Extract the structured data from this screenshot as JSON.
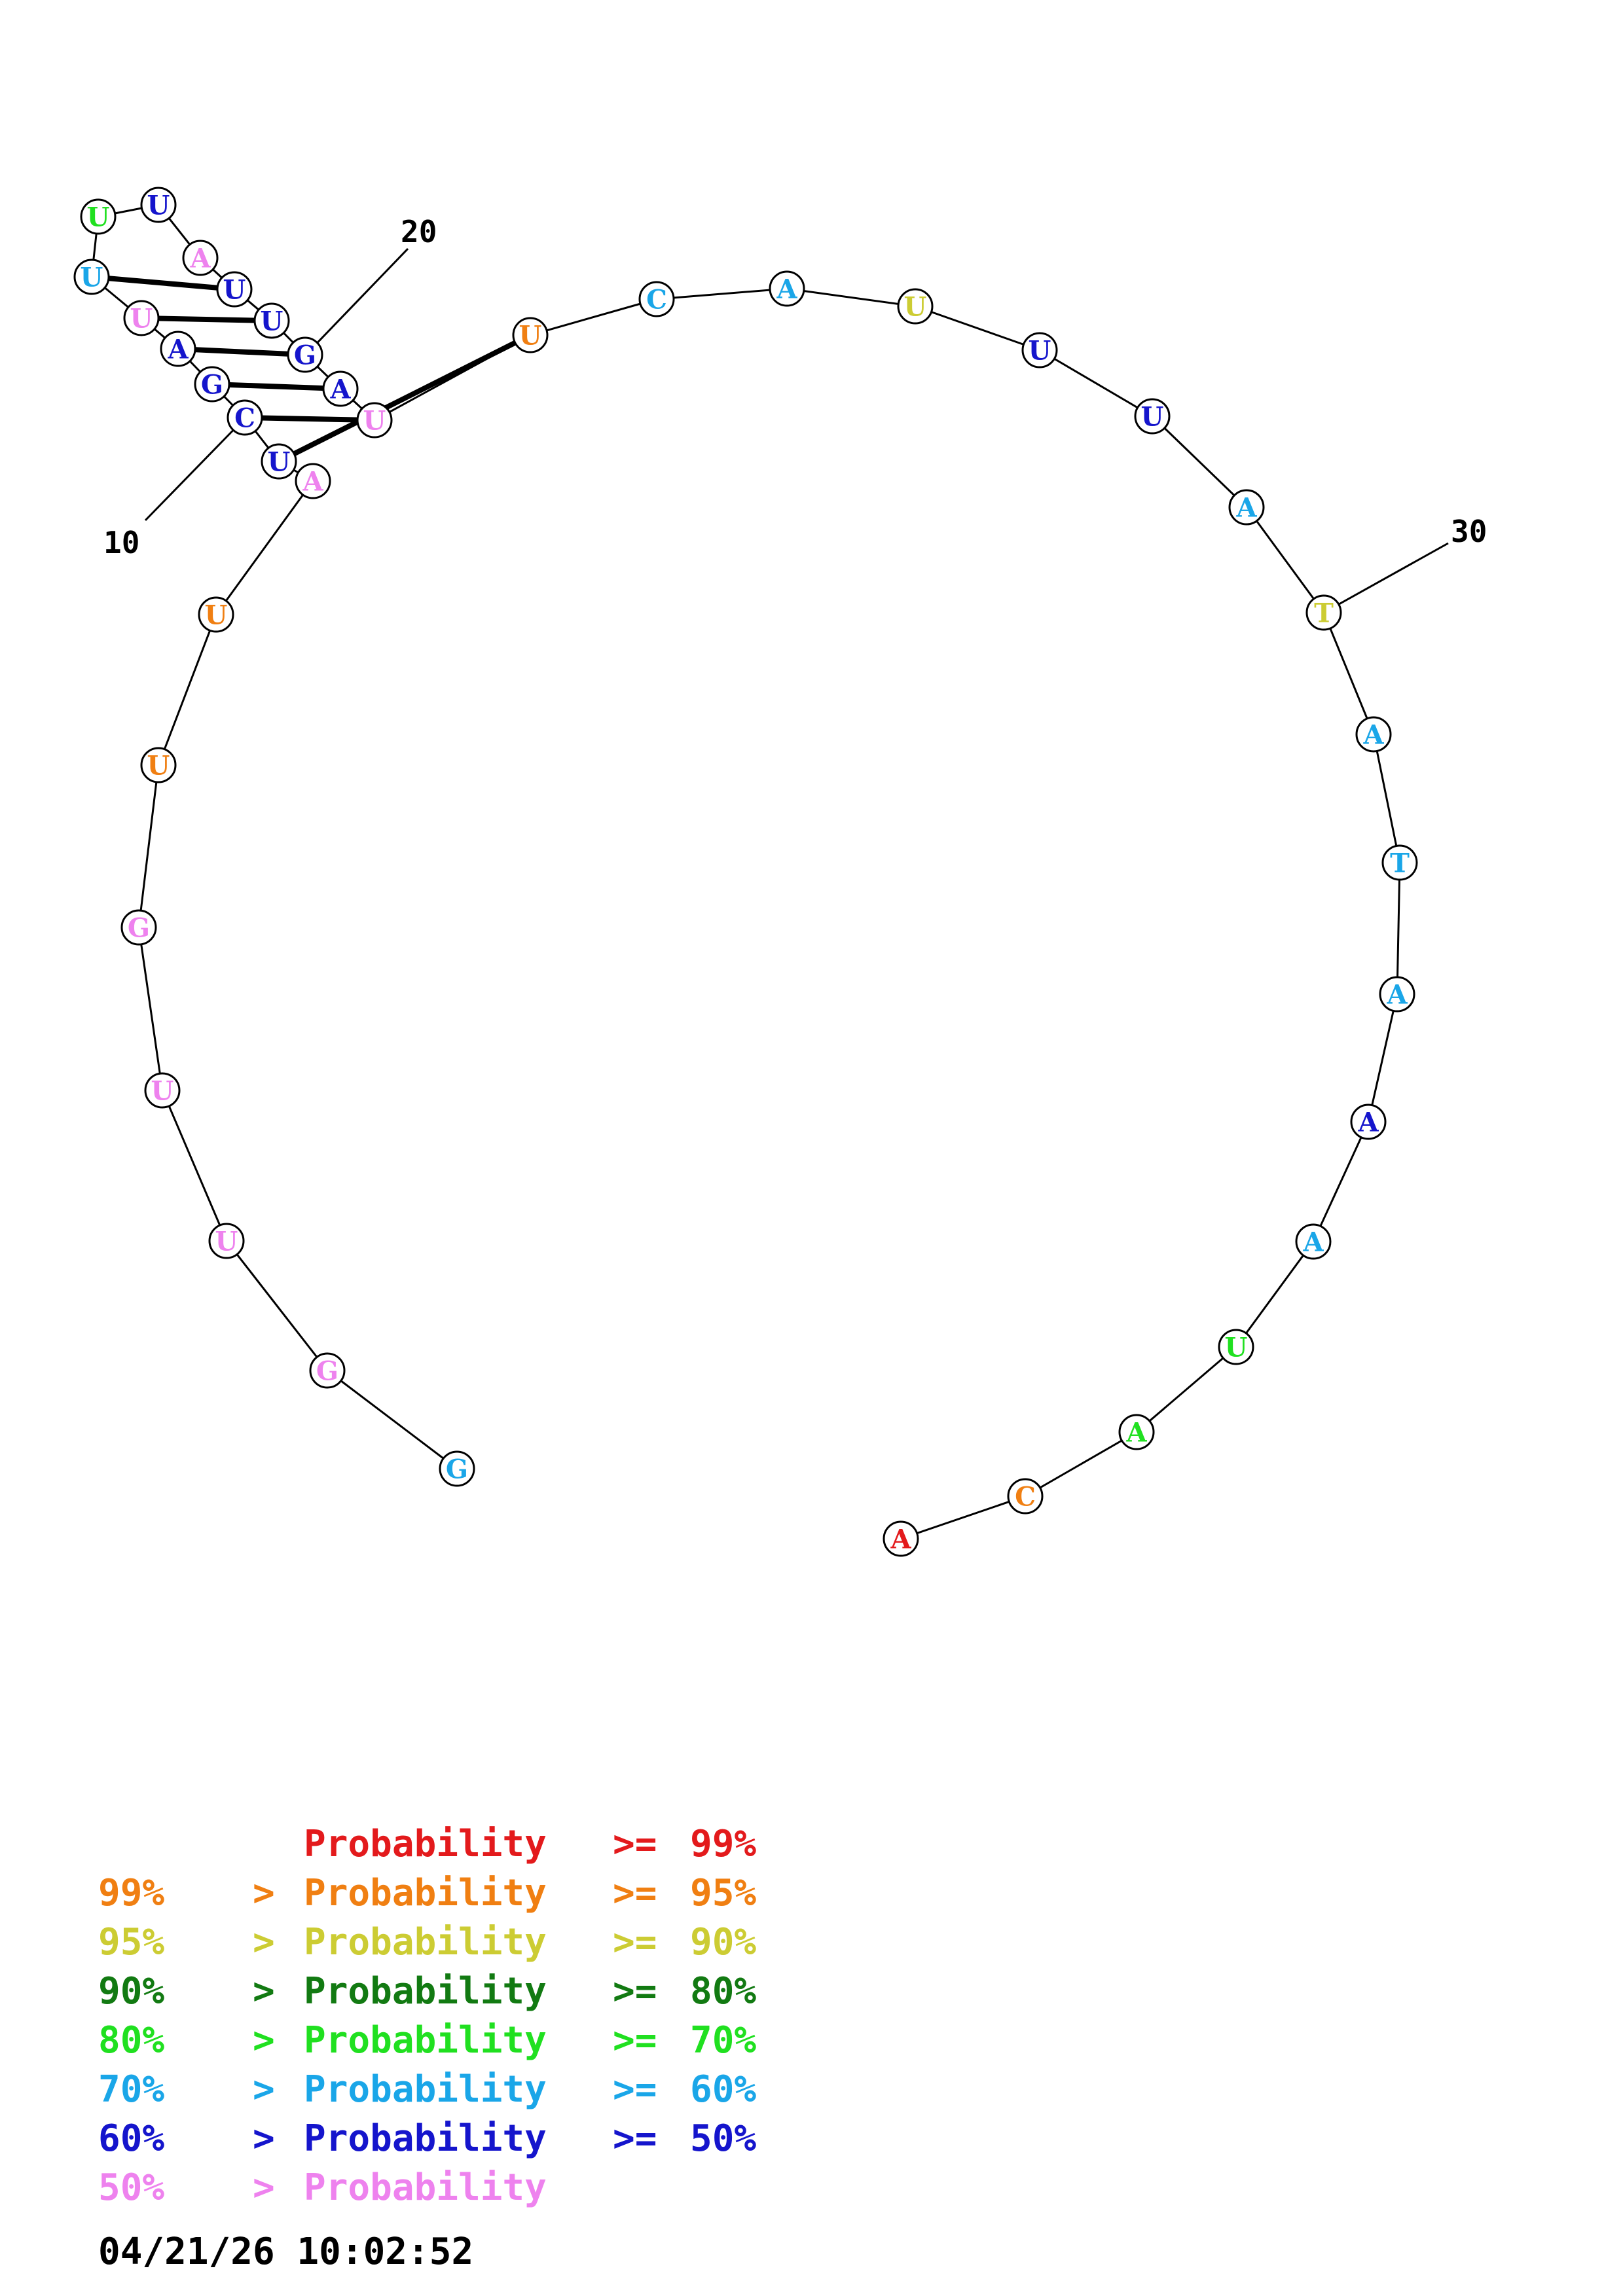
{
  "legend": [
    {
      "lower_bound": "",
      "arrow": "",
      "label": "Probability",
      "op": ">=",
      "upper": "99%",
      "color": "#e31a1c"
    },
    {
      "lower_bound": "99%",
      "arrow": ">",
      "label": "Probability",
      "op": ">=",
      "upper": "95%",
      "color": "#f07f12"
    },
    {
      "lower_bound": "95%",
      "arrow": ">",
      "label": "Probability",
      "op": ">=",
      "upper": "90%",
      "color": "#cccc33"
    },
    {
      "lower_bound": "90%",
      "arrow": ">",
      "label": "Probability",
      "op": ">=",
      "upper": "80%",
      "color": "#127a12"
    },
    {
      "lower_bound": "80%",
      "arrow": ">",
      "label": "Probability",
      "op": ">=",
      "upper": "70%",
      "color": "#20e020"
    },
    {
      "lower_bound": "70%",
      "arrow": ">",
      "label": "Probability",
      "op": ">=",
      "upper": "60%",
      "color": "#1aa6e8"
    },
    {
      "lower_bound": "60%",
      "arrow": ">",
      "label": "Probability",
      "op": ">=",
      "upper": "50%",
      "color": "#1515cc"
    },
    {
      "lower_bound": "50%",
      "arrow": ">",
      "label": "Probability",
      "op": "",
      "upper": "",
      "color": "#ee82ee"
    }
  ],
  "timestamp": "04/21/26 10:02:52",
  "position_labels": [
    "10",
    "20",
    "30"
  ],
  "sequence": [
    {
      "base": "G",
      "color": "#1aa6e8"
    },
    {
      "base": "G",
      "color": "#ee82ee"
    },
    {
      "base": "U",
      "color": "#ee82ee"
    },
    {
      "base": "U",
      "color": "#ee82ee"
    },
    {
      "base": "G",
      "color": "#ee82ee"
    },
    {
      "base": "U",
      "color": "#f07f12"
    },
    {
      "base": "U",
      "color": "#f07f12"
    },
    {
      "base": "A",
      "color": "#ee82ee"
    },
    {
      "base": "U",
      "color": "#1515cc"
    },
    {
      "base": "C",
      "color": "#1515cc"
    },
    {
      "base": "G",
      "color": "#1515cc"
    },
    {
      "base": "A",
      "color": "#1515cc"
    },
    {
      "base": "U",
      "color": "#ee82ee"
    },
    {
      "base": "U",
      "color": "#1aa6e8"
    },
    {
      "base": "U",
      "color": "#20e020"
    },
    {
      "base": "U",
      "color": "#1515cc"
    },
    {
      "base": "A",
      "color": "#ee82ee"
    },
    {
      "base": "U",
      "color": "#1515cc"
    },
    {
      "base": "U",
      "color": "#1515cc"
    },
    {
      "base": "G",
      "color": "#1515cc"
    },
    {
      "base": "A",
      "color": "#1515cc"
    },
    {
      "base": "U",
      "color": "#ee82ee"
    },
    {
      "base": "U",
      "color": "#f07f12"
    },
    {
      "base": "C",
      "color": "#1aa6e8"
    },
    {
      "base": "A",
      "color": "#1aa6e8"
    },
    {
      "base": "U",
      "color": "#cccc33"
    },
    {
      "base": "U",
      "color": "#1515cc"
    },
    {
      "base": "U",
      "color": "#1515cc"
    },
    {
      "base": "A",
      "color": "#1aa6e8"
    },
    {
      "base": "T",
      "color": "#cccc33"
    },
    {
      "base": "A",
      "color": "#1aa6e8"
    },
    {
      "base": "T",
      "color": "#1aa6e8"
    },
    {
      "base": "A",
      "color": "#1aa6e8"
    },
    {
      "base": "A",
      "color": "#1515cc"
    },
    {
      "base": "A",
      "color": "#1aa6e8"
    },
    {
      "base": "U",
      "color": "#20e020"
    },
    {
      "base": "A",
      "color": "#20e020"
    },
    {
      "base": "C",
      "color": "#f07f12"
    },
    {
      "base": "A",
      "color": "#e31a1c"
    }
  ],
  "pairs": [
    [
      8,
      22
    ],
    [
      9,
      21
    ],
    [
      10,
      20
    ],
    [
      11,
      19
    ],
    [
      12,
      18
    ],
    [
      13,
      17
    ]
  ]
}
